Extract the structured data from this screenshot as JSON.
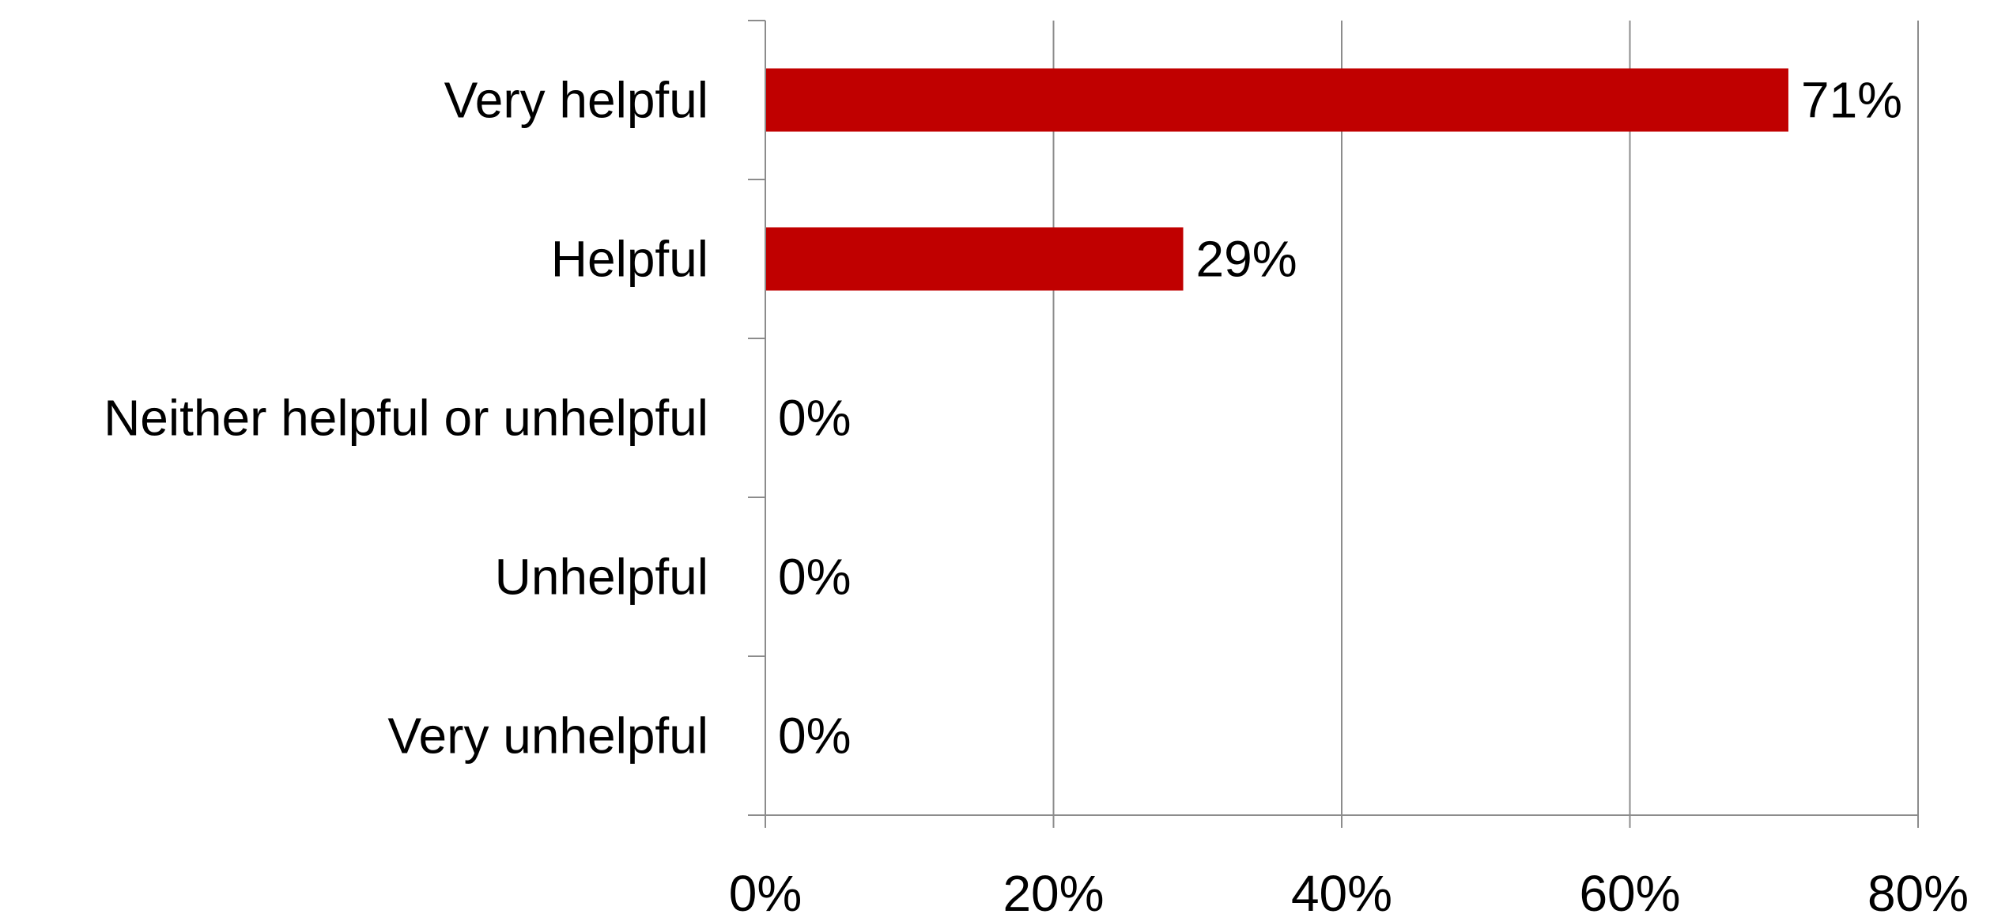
{
  "chart_data": {
    "type": "bar",
    "orientation": "horizontal",
    "categories": [
      "Very helpful",
      "Helpful",
      "Neither helpful or unhelpful",
      "Unhelpful",
      "Very unhelpful"
    ],
    "values": [
      71,
      29,
      0,
      0,
      0
    ],
    "data_labels": [
      "71%",
      "29%",
      "0%",
      "0%",
      "0%"
    ],
    "x_ticks": [
      0,
      20,
      40,
      60,
      80
    ],
    "x_tick_labels": [
      "0%",
      "20%",
      "40%",
      "60%",
      "80%"
    ],
    "xlim": [
      0,
      80
    ],
    "title": "",
    "xlabel": "",
    "ylabel": "",
    "grid": "vertical",
    "legend": "none",
    "colors": {
      "bar": "#C00000",
      "grid": "#8C8C8C",
      "axis": "#8C8C8C",
      "text": "#000000"
    }
  }
}
